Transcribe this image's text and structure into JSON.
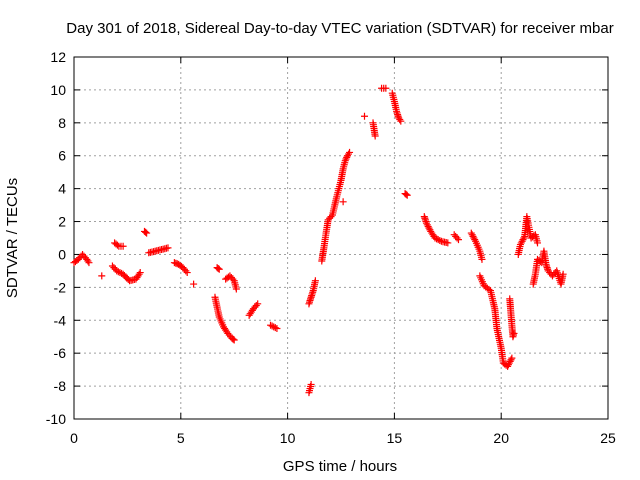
{
  "chart_data": {
    "type": "scatter",
    "title": "Day 301 of 2018, Sidereal Day-to-day VTEC variation (SDTVAR) for receiver mbar",
    "xlabel": "GPS time / hours",
    "ylabel": "SDTVAR / TECUs",
    "xlim": [
      0,
      25
    ],
    "ylim": [
      -10,
      12
    ],
    "xticks": [
      0,
      5,
      10,
      15,
      20,
      25
    ],
    "yticks": [
      -10,
      -8,
      -6,
      -4,
      -2,
      0,
      2,
      4,
      6,
      8,
      10,
      12
    ],
    "grid": true,
    "marker": "plus",
    "color": "#ff0000",
    "series": [
      {
        "name": "SDTVAR",
        "segments": [
          [
            [
              0.0,
              -0.5
            ],
            [
              0.2,
              -0.3
            ],
            [
              0.4,
              0.0
            ],
            [
              0.6,
              -0.3
            ],
            [
              0.7,
              -0.5
            ]
          ],
          [
            [
              1.3,
              -1.3
            ]
          ],
          [
            [
              1.8,
              -0.7
            ],
            [
              2.0,
              -1.0
            ],
            [
              2.3,
              -1.2
            ],
            [
              2.6,
              -1.6
            ],
            [
              2.9,
              -1.5
            ],
            [
              3.1,
              -1.1
            ]
          ],
          [
            [
              1.9,
              0.7
            ],
            [
              2.1,
              0.5
            ],
            [
              2.3,
              0.5
            ]
          ],
          [
            [
              3.3,
              1.4
            ],
            [
              3.4,
              1.3
            ]
          ],
          [
            [
              3.5,
              0.1
            ],
            [
              3.8,
              0.2
            ],
            [
              4.1,
              0.3
            ],
            [
              4.4,
              0.4
            ]
          ],
          [
            [
              4.7,
              -0.5
            ],
            [
              4.9,
              -0.6
            ],
            [
              5.1,
              -0.8
            ],
            [
              5.3,
              -1.1
            ]
          ],
          [
            [
              5.6,
              -1.8
            ]
          ],
          [
            [
              6.6,
              -2.6
            ],
            [
              6.7,
              -3.2
            ],
            [
              6.8,
              -3.8
            ],
            [
              7.0,
              -4.4
            ],
            [
              7.2,
              -4.8
            ],
            [
              7.4,
              -5.1
            ],
            [
              7.5,
              -5.2
            ]
          ],
          [
            [
              6.7,
              -0.8
            ],
            [
              6.8,
              -0.9
            ]
          ],
          [
            [
              7.1,
              -1.5
            ],
            [
              7.3,
              -1.3
            ],
            [
              7.5,
              -1.6
            ],
            [
              7.6,
              -2.1
            ]
          ],
          [
            [
              8.2,
              -3.7
            ],
            [
              8.4,
              -3.3
            ],
            [
              8.6,
              -3.0
            ]
          ],
          [
            [
              9.2,
              -4.3
            ],
            [
              9.5,
              -4.5
            ]
          ],
          [
            [
              11.0,
              -8.4
            ],
            [
              11.1,
              -7.9
            ]
          ],
          [
            [
              11.0,
              -3.0
            ],
            [
              11.1,
              -2.6
            ],
            [
              11.2,
              -2.2
            ],
            [
              11.3,
              -1.6
            ]
          ],
          [
            [
              11.6,
              -0.4
            ],
            [
              11.7,
              0.4
            ],
            [
              11.8,
              1.3
            ],
            [
              11.9,
              2.1
            ],
            [
              12.1,
              2.4
            ],
            [
              12.3,
              3.5
            ],
            [
              12.5,
              4.5
            ],
            [
              12.6,
              5.2
            ],
            [
              12.7,
              5.7
            ],
            [
              12.8,
              6.0
            ],
            [
              12.9,
              6.2
            ]
          ],
          [
            [
              12.6,
              3.2
            ]
          ],
          [
            [
              13.6,
              8.4
            ]
          ],
          [
            [
              14.0,
              8.0
            ],
            [
              14.1,
              7.2
            ]
          ],
          [
            [
              14.4,
              10.1
            ],
            [
              14.6,
              10.1
            ]
          ],
          [
            [
              14.9,
              9.8
            ],
            [
              15.0,
              9.3
            ],
            [
              15.1,
              8.7
            ],
            [
              15.2,
              8.3
            ],
            [
              15.3,
              8.1
            ]
          ],
          [
            [
              15.5,
              3.7
            ],
            [
              15.6,
              3.6
            ]
          ],
          [
            [
              16.4,
              2.3
            ],
            [
              16.5,
              1.9
            ],
            [
              16.7,
              1.4
            ],
            [
              16.9,
              1.0
            ],
            [
              17.2,
              0.8
            ],
            [
              17.5,
              0.7
            ]
          ],
          [
            [
              17.8,
              1.2
            ],
            [
              18.0,
              0.9
            ]
          ],
          [
            [
              18.6,
              1.3
            ],
            [
              18.8,
              0.8
            ],
            [
              19.0,
              0.2
            ],
            [
              19.1,
              -0.3
            ]
          ],
          [
            [
              19.0,
              -1.3
            ],
            [
              19.2,
              -1.9
            ],
            [
              19.5,
              -2.2
            ],
            [
              19.7,
              -3.3
            ],
            [
              19.8,
              -4.5
            ],
            [
              20.0,
              -5.7
            ],
            [
              20.1,
              -6.6
            ],
            [
              20.3,
              -6.8
            ],
            [
              20.5,
              -6.3
            ]
          ],
          [
            [
              20.4,
              -2.7
            ],
            [
              20.45,
              -3.5
            ],
            [
              20.5,
              -4.3
            ],
            [
              20.55,
              -5.0
            ],
            [
              20.6,
              -4.8
            ]
          ],
          [
            [
              20.8,
              0.0
            ],
            [
              20.9,
              0.6
            ],
            [
              21.1,
              1.1
            ],
            [
              21.2,
              2.3
            ],
            [
              21.4,
              1.0
            ],
            [
              21.6,
              1.2
            ],
            [
              21.7,
              0.7
            ]
          ],
          [
            [
              21.5,
              -1.8
            ],
            [
              21.6,
              -1.2
            ],
            [
              21.7,
              -0.3
            ],
            [
              21.9,
              -0.5
            ],
            [
              22.0,
              0.2
            ],
            [
              22.1,
              -0.6
            ],
            [
              22.2,
              -1.0
            ],
            [
              22.4,
              -1.3
            ],
            [
              22.6,
              -1.0
            ],
            [
              22.8,
              -1.8
            ],
            [
              22.9,
              -1.2
            ]
          ]
        ]
      }
    ]
  }
}
